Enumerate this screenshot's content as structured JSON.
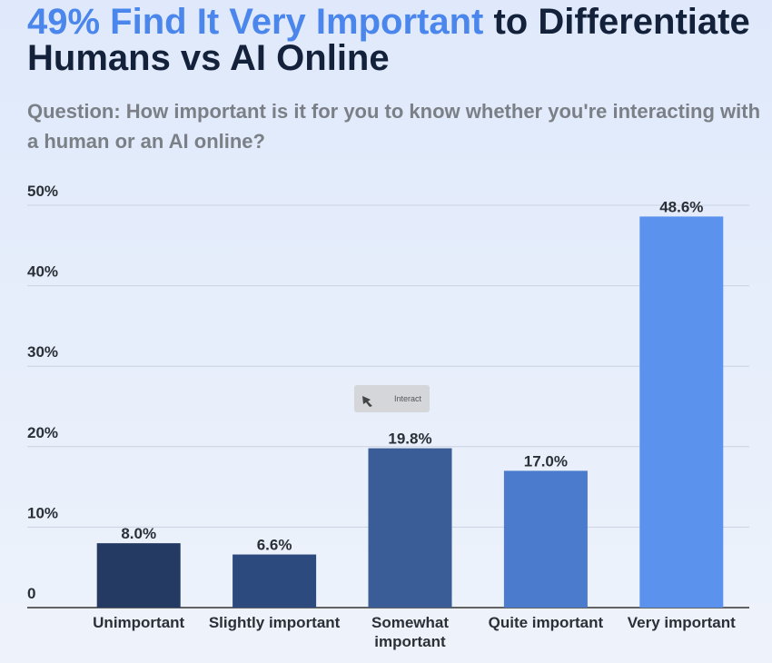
{
  "chart_data": {
    "type": "bar",
    "title_highlight": "49% Find It Very Important",
    "title": "to Differentiate Humans vs AI Online",
    "subtitle": "Question: How important is it for you to know whether you're interacting with a human or an AI online?",
    "categories": [
      "Unimportant",
      "Slightly important",
      "Somewhat important",
      "Quite important",
      "Very important"
    ],
    "values": [
      8.0,
      6.6,
      19.8,
      17.0,
      48.6
    ],
    "value_labels": [
      "8.0%",
      "6.6%",
      "19.8%",
      "17.0%",
      "48.6%"
    ],
    "colors": [
      "#243a63",
      "#2d4a7e",
      "#3a5c97",
      "#4a7bcc",
      "#5a92ee"
    ],
    "ylim": [
      0,
      50
    ],
    "yticks": [
      0,
      {
        "value": 10,
        "label": "10%"
      },
      {
        "value": 20,
        "label": "20%"
      },
      {
        "value": 30,
        "label": "30%"
      },
      {
        "value": 40,
        "label": "40%"
      },
      {
        "value": 50,
        "label": "50%"
      }
    ],
    "grid": true
  },
  "interact_button": "Interact"
}
